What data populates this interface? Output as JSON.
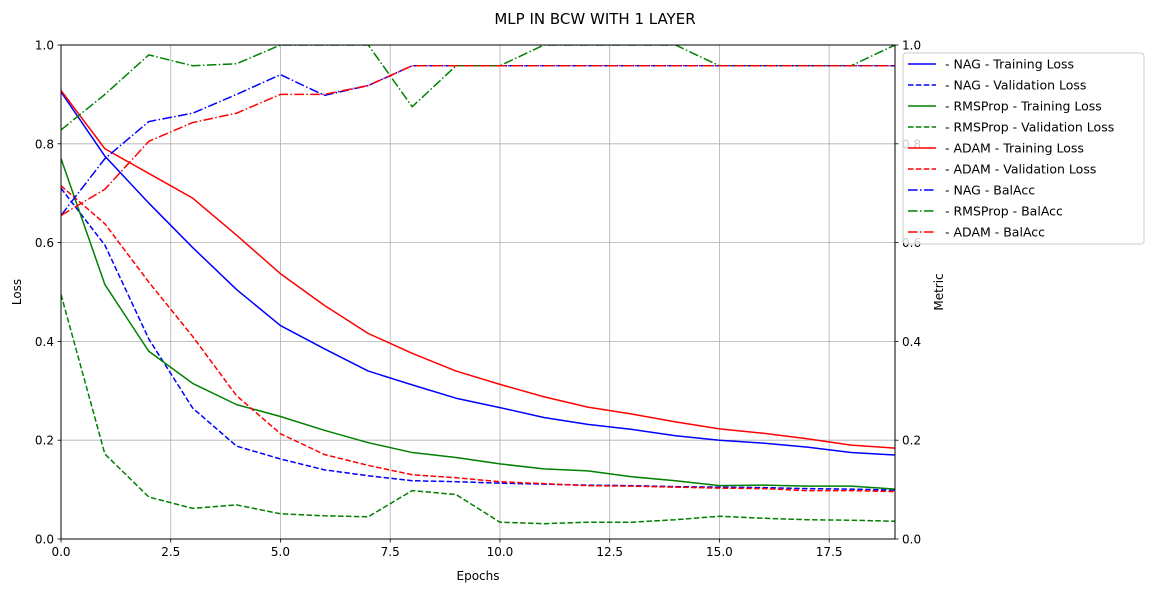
{
  "chart_data": {
    "type": "line",
    "title": "MLP IN BCW WITH 1 LAYER",
    "xlabel": "Epochs",
    "ylabel": "Loss",
    "ylabel_right": "Metric",
    "xlim": [
      0,
      19
    ],
    "ylim": [
      0,
      1.0
    ],
    "ylim_right": [
      0,
      1.0
    ],
    "xticks": [
      "0.0",
      "2.5",
      "5.0",
      "7.5",
      "10.0",
      "12.5",
      "15.0",
      "17.5"
    ],
    "yticks": [
      "0.0",
      "0.2",
      "0.4",
      "0.6",
      "0.8",
      "1.0"
    ],
    "yticks_right": [
      "0.0",
      "0.2",
      "0.4",
      "0.6",
      "0.8",
      "1.0"
    ],
    "grid": true,
    "legend_position": "outside-right-top",
    "x": [
      0,
      1,
      2,
      3,
      4,
      5,
      6,
      7,
      8,
      9,
      10,
      11,
      12,
      13,
      14,
      15,
      16,
      17,
      18,
      19
    ],
    "series": [
      {
        "name": " - NAG - Training Loss",
        "color": "#0000ff",
        "style": "solid",
        "axis": "left",
        "values": [
          0.905,
          0.775,
          0.68,
          0.59,
          0.505,
          0.432,
          0.385,
          0.34,
          0.312,
          0.285,
          0.266,
          0.246,
          0.232,
          0.222,
          0.209,
          0.2,
          0.194,
          0.186,
          0.175,
          0.17
        ]
      },
      {
        "name": " - NAG - Validation Loss",
        "color": "#0000ff",
        "style": "dashed",
        "axis": "left",
        "values": [
          0.71,
          0.595,
          0.405,
          0.265,
          0.188,
          0.162,
          0.14,
          0.128,
          0.118,
          0.116,
          0.113,
          0.111,
          0.109,
          0.108,
          0.106,
          0.105,
          0.104,
          0.102,
          0.101,
          0.099
        ]
      },
      {
        "name": " - RMSProp - Training Loss",
        "color": "#008000",
        "style": "solid",
        "axis": "left",
        "values": [
          0.77,
          0.515,
          0.38,
          0.315,
          0.272,
          0.248,
          0.22,
          0.195,
          0.175,
          0.165,
          0.152,
          0.142,
          0.138,
          0.126,
          0.118,
          0.108,
          0.109,
          0.107,
          0.107,
          0.101
        ]
      },
      {
        "name": " - RMSProp - Validation Loss",
        "color": "#008000",
        "style": "dashed",
        "axis": "left",
        "values": [
          0.495,
          0.172,
          0.085,
          0.062,
          0.069,
          0.051,
          0.047,
          0.045,
          0.098,
          0.09,
          0.034,
          0.031,
          0.034,
          0.034,
          0.039,
          0.046,
          0.042,
          0.039,
          0.038,
          0.036
        ]
      },
      {
        "name": " - ADAM - Training Loss",
        "color": "#ff0000",
        "style": "solid",
        "axis": "left",
        "values": [
          0.908,
          0.79,
          0.74,
          0.69,
          0.615,
          0.537,
          0.473,
          0.416,
          0.376,
          0.34,
          0.313,
          0.288,
          0.267,
          0.253,
          0.237,
          0.223,
          0.214,
          0.203,
          0.19,
          0.184
        ]
      },
      {
        "name": " - ADAM - Validation Loss",
        "color": "#ff0000",
        "style": "dashed",
        "axis": "left",
        "values": [
          0.715,
          0.638,
          0.52,
          0.41,
          0.29,
          0.213,
          0.171,
          0.149,
          0.13,
          0.124,
          0.116,
          0.112,
          0.108,
          0.107,
          0.105,
          0.103,
          0.102,
          0.098,
          0.098,
          0.096
        ]
      },
      {
        "name": " - NAG - BalAcc",
        "color": "#0000ff",
        "style": "dashdot",
        "axis": "right",
        "values": [
          0.655,
          0.77,
          0.845,
          0.862,
          0.9,
          0.94,
          0.898,
          0.918,
          0.958,
          0.958,
          0.958,
          0.958,
          0.958,
          0.958,
          0.958,
          0.958,
          0.958,
          0.958,
          0.958,
          0.958
        ]
      },
      {
        "name": " - RMSProp - BalAcc",
        "color": "#008000",
        "style": "dashdot",
        "axis": "right",
        "values": [
          0.828,
          0.9,
          0.98,
          0.958,
          0.962,
          1.0,
          1.0,
          1.0,
          0.875,
          0.958,
          0.958,
          1.0,
          1.0,
          1.0,
          1.0,
          0.958,
          0.958,
          0.958,
          0.958,
          1.0
        ]
      },
      {
        "name": " - ADAM - BalAcc",
        "color": "#ff0000",
        "style": "dashdot",
        "axis": "right",
        "values": [
          0.655,
          0.708,
          0.805,
          0.843,
          0.862,
          0.9,
          0.9,
          0.918,
          0.958,
          0.958,
          0.958,
          0.958,
          0.958,
          0.958,
          0.958,
          0.958,
          0.958,
          0.958,
          0.958,
          0.958
        ]
      }
    ]
  }
}
